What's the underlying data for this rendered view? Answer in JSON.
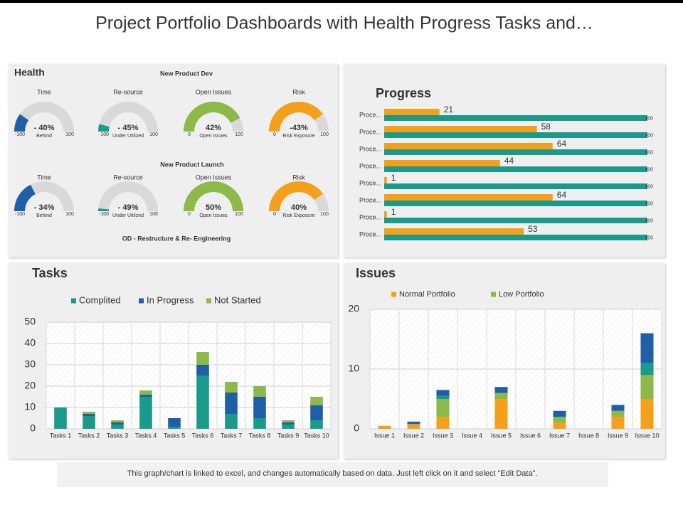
{
  "title": "Project Portfolio Dashboards with Health Progress Tasks and…",
  "health": {
    "title": "Health",
    "sections": [
      {
        "title": "New Product Dev",
        "gauges": [
          {
            "label": "Time",
            "value": "- 40%",
            "caption": "Behind",
            "min": "-100",
            "max": "100",
            "color": "#1f5fa8"
          },
          {
            "label": "Re-source",
            "value": "- 45%",
            "caption": "Under Utilized",
            "min": "-100",
            "max": "100",
            "color": "#1a9a8a"
          },
          {
            "label": "Open Issues",
            "value": "42%",
            "caption": "Open Issues",
            "min": "0",
            "max": "100",
            "color": "#8db84a"
          },
          {
            "label": "Risk",
            "value": "-43%",
            "caption": "Risk Exposure",
            "min": "0",
            "max": "100",
            "color": "#f5a01a"
          }
        ]
      },
      {
        "title": "New Product Launch",
        "gauges": [
          {
            "label": "Time",
            "value": "- 34%",
            "caption": "Behind",
            "min": "-100",
            "max": "100",
            "color": "#1f5fa8"
          },
          {
            "label": "Re-source",
            "value": "- 49%",
            "caption": "Under Utilized",
            "min": "-100",
            "max": "100",
            "color": "#1a9a8a"
          },
          {
            "label": "Open Issues",
            "value": "50%",
            "caption": "Open Issues",
            "min": "0",
            "max": "100",
            "color": "#8db84a"
          },
          {
            "label": "Risk",
            "value": "40%",
            "caption": "Risk Exposure",
            "min": "0",
            "max": "100",
            "color": "#f5a01a"
          }
        ]
      },
      {
        "title": "OD - Restructure & Re- Engineering"
      }
    ]
  },
  "chart_data": [
    {
      "type": "hbar",
      "title": "Progress",
      "categories": [
        "Proce...",
        "Proce...",
        "Proce...",
        "Proce...",
        "Proce...",
        "Proce...",
        "Proce...",
        "Proce..."
      ],
      "xlim": [
        0,
        100
      ],
      "series": [
        {
          "color": "#f5a01a",
          "values": [
            21,
            58,
            64,
            44,
            1,
            64,
            1,
            53
          ]
        },
        {
          "color": "#1a9a8a",
          "values": [
            100,
            100,
            100,
            100,
            100,
            100,
            100,
            100
          ]
        }
      ]
    },
    {
      "type": "stacked_bar",
      "title": "Tasks",
      "categories": [
        "Tasks 1",
        "Tasks 2",
        "Tasks 3",
        "Tasks 4",
        "Tasks 5",
        "Tasks 6",
        "Tasks 7",
        "Tasks 8",
        "Tasks 9",
        "Tasks 10"
      ],
      "ylim": [
        0,
        50
      ],
      "yticks": [
        0,
        10,
        20,
        30,
        40,
        50
      ],
      "grid": true,
      "series": [
        {
          "name": "Complited",
          "color": "#1a9a8a",
          "values": [
            10,
            6,
            2,
            15,
            1,
            25,
            7,
            5,
            2,
            4
          ]
        },
        {
          "name": "In Progress",
          "color": "#1f5fa8",
          "values": [
            0,
            1,
            1,
            1,
            4,
            5,
            10,
            10,
            1,
            7
          ]
        },
        {
          "name": "Not Started",
          "color": "#8db84a",
          "values": [
            0,
            1,
            1,
            2,
            0,
            6,
            5,
            5,
            1,
            4
          ]
        }
      ]
    },
    {
      "type": "stacked_bar",
      "title": "Issues",
      "categories": [
        "Issue 1",
        "Issue 2",
        "Issue 3",
        "Issue 4",
        "Issue 5",
        "Issue 6",
        "Issue 7",
        "Issue 8",
        "Issue 9",
        "Issue 10"
      ],
      "ylim": [
        0,
        20
      ],
      "yticks": [
        0,
        10,
        20
      ],
      "grid": true,
      "series": [
        {
          "name": "Normal Portfolio",
          "color": "#f5a01a",
          "values": [
            0.5,
            0.8,
            2,
            0,
            5,
            0,
            1,
            0,
            2,
            5
          ]
        },
        {
          "name": "Low Portfolio",
          "color": "#8db84a",
          "values": [
            0,
            0,
            3,
            0,
            1,
            0,
            1,
            0,
            1,
            4
          ]
        },
        {
          "color": "#1a9a8a",
          "values": [
            0,
            0,
            0.5,
            0,
            0,
            0,
            0,
            0,
            0,
            2
          ]
        },
        {
          "color": "#1f5fa8",
          "values": [
            0,
            0.4,
            1,
            0,
            1,
            0,
            1,
            0,
            1,
            5
          ]
        }
      ]
    }
  ],
  "footer": "This graph/chart is linked to excel, and changes automatically based on data. Just left click on it and select “Edit Data”."
}
